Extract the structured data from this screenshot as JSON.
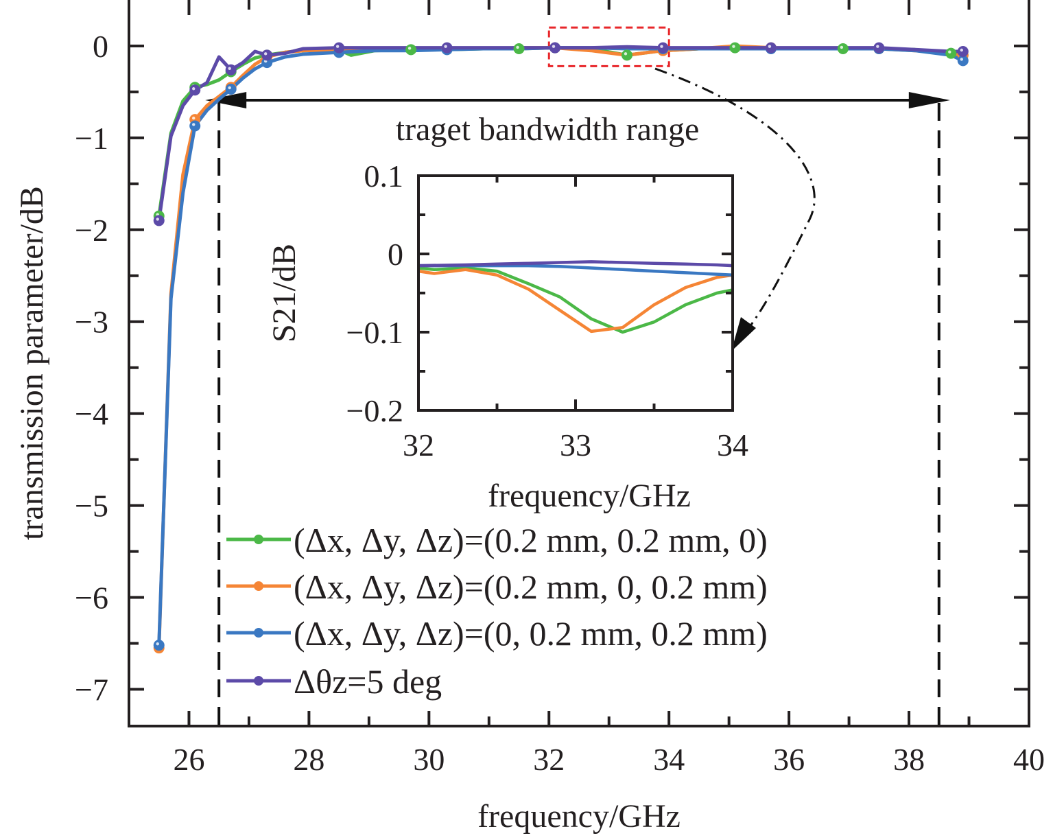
{
  "chart_data": {
    "type": "line",
    "title": "",
    "xlabel": "frequency/GHz",
    "ylabel": "transmission parameter/dB",
    "xlim": [
      25,
      40
    ],
    "ylim": [
      -7.4,
      0.5
    ],
    "xticks": [
      26,
      28,
      30,
      32,
      34,
      36,
      38,
      40
    ],
    "yticks": [
      0,
      -1,
      -2,
      -3,
      -4,
      -5,
      -6,
      -7
    ],
    "xtick_labels": [
      "26",
      "28",
      "30",
      "32",
      "34",
      "36",
      "38",
      "40"
    ],
    "ytick_labels": [
      "0",
      "−1",
      "−2",
      "−3",
      "−4",
      "−5",
      "−6",
      "−7"
    ],
    "grid": false,
    "legend_position": "bottom-center",
    "series": [
      {
        "name": "(Δx, Δy, Δz)=(0.2 mm, 0.2 mm, 0)",
        "color": "#4bb847",
        "x": [
          25.5,
          25.7,
          25.9,
          26.1,
          26.3,
          26.5,
          26.7,
          26.9,
          27.1,
          27.3,
          27.6,
          27.9,
          28.5,
          28.7,
          29.1,
          29.7,
          30.3,
          30.9,
          31.5,
          32.1,
          32.7,
          33.3,
          33.9,
          34.5,
          35.1,
          35.7,
          36.3,
          36.9,
          37.5,
          38.1,
          38.7,
          38.9
        ],
        "y": [
          -1.85,
          -0.95,
          -0.6,
          -0.45,
          -0.42,
          -0.37,
          -0.28,
          -0.2,
          -0.13,
          -0.1,
          -0.07,
          -0.05,
          -0.04,
          -0.1,
          -0.05,
          -0.04,
          -0.04,
          -0.03,
          -0.03,
          -0.02,
          -0.03,
          -0.1,
          -0.05,
          -0.03,
          -0.02,
          -0.03,
          -0.03,
          -0.03,
          -0.03,
          -0.04,
          -0.08,
          -0.1
        ]
      },
      {
        "name": "(Δx, Δy, Δz)=(0.2 mm, 0, 0.2 mm)",
        "color": "#f58535",
        "x": [
          25.5,
          25.7,
          25.9,
          26.1,
          26.3,
          26.5,
          26.7,
          26.9,
          27.1,
          27.3,
          27.6,
          27.9,
          28.5,
          29.1,
          29.7,
          30.3,
          30.9,
          31.5,
          32.1,
          32.7,
          33.3,
          33.9,
          34.5,
          35.1,
          35.7,
          36.3,
          36.9,
          37.5,
          38.1,
          38.7,
          38.9
        ],
        "y": [
          -6.55,
          -2.7,
          -1.4,
          -0.8,
          -0.65,
          -0.55,
          -0.45,
          -0.32,
          -0.2,
          -0.12,
          -0.07,
          -0.05,
          -0.04,
          -0.04,
          -0.03,
          -0.03,
          -0.03,
          -0.02,
          -0.02,
          -0.05,
          -0.1,
          -0.05,
          -0.03,
          0.0,
          -0.02,
          -0.03,
          -0.03,
          -0.03,
          -0.05,
          -0.08,
          -0.1
        ]
      },
      {
        "name": "(Δx, Δy, Δz)=(0, 0.2 mm, 0.2 mm)",
        "color": "#3a78c2",
        "x": [
          25.5,
          25.7,
          25.9,
          26.1,
          26.3,
          26.5,
          26.7,
          26.9,
          27.1,
          27.3,
          27.6,
          27.9,
          28.5,
          29.1,
          29.7,
          30.3,
          30.9,
          31.5,
          32.1,
          32.7,
          33.3,
          33.9,
          34.5,
          35.1,
          35.7,
          36.3,
          36.9,
          37.5,
          38.1,
          38.7,
          38.9
        ],
        "y": [
          -6.52,
          -2.75,
          -1.6,
          -0.87,
          -0.7,
          -0.58,
          -0.47,
          -0.35,
          -0.25,
          -0.18,
          -0.12,
          -0.09,
          -0.07,
          -0.05,
          -0.05,
          -0.04,
          -0.03,
          -0.03,
          -0.02,
          -0.02,
          -0.03,
          -0.03,
          -0.03,
          -0.03,
          -0.03,
          -0.03,
          -0.03,
          -0.03,
          -0.05,
          -0.1,
          -0.16
        ]
      },
      {
        "name": "Δθz=5 deg",
        "color": "#5c4aa8",
        "x": [
          25.5,
          25.7,
          25.9,
          26.1,
          26.3,
          26.5,
          26.7,
          26.9,
          27.1,
          27.3,
          27.6,
          27.9,
          28.5,
          29.1,
          29.7,
          30.3,
          30.9,
          31.5,
          32.1,
          32.7,
          33.3,
          33.9,
          34.5,
          35.1,
          35.7,
          36.3,
          36.9,
          37.5,
          38.1,
          38.7,
          38.9
        ],
        "y": [
          -1.9,
          -0.98,
          -0.65,
          -0.48,
          -0.4,
          -0.12,
          -0.26,
          -0.18,
          -0.06,
          -0.1,
          -0.08,
          -0.03,
          -0.02,
          -0.02,
          -0.02,
          -0.02,
          -0.02,
          -0.02,
          -0.02,
          -0.02,
          -0.01,
          -0.02,
          -0.02,
          -0.02,
          -0.02,
          -0.02,
          -0.02,
          -0.02,
          -0.04,
          -0.06,
          -0.06
        ]
      }
    ],
    "annotations": {
      "bandwidth_label": "traget bandwidth range",
      "bandwidth_range": [
        26.5,
        38.5
      ],
      "zoom_box": {
        "x": [
          32.0,
          34.0
        ],
        "y": [
          -0.22,
          0.2
        ]
      }
    },
    "inset": {
      "type": "line",
      "xlabel": "frequency/GHz",
      "ylabel": "S21/dB",
      "xlim": [
        32,
        34
      ],
      "ylim": [
        -0.2,
        0.1
      ],
      "xticks": [
        32,
        33,
        34
      ],
      "yticks": [
        0.1,
        0,
        -0.1,
        -0.2
      ],
      "xtick_labels": [
        "32",
        "33",
        "34"
      ],
      "ytick_labels": [
        "0.1",
        "0",
        "−0.1",
        "−0.2"
      ],
      "series": [
        {
          "name": "green",
          "color": "#4bb847",
          "x": [
            32.0,
            32.1,
            32.3,
            32.5,
            32.7,
            32.9,
            33.1,
            33.3,
            33.5,
            33.7,
            33.9,
            34.0
          ],
          "y": [
            -0.018,
            -0.02,
            -0.018,
            -0.022,
            -0.038,
            -0.055,
            -0.083,
            -0.1,
            -0.087,
            -0.065,
            -0.05,
            -0.046
          ]
        },
        {
          "name": "orange",
          "color": "#f58535",
          "x": [
            32.0,
            32.1,
            32.3,
            32.5,
            32.7,
            32.9,
            33.1,
            33.3,
            33.5,
            33.7,
            33.9,
            34.0
          ],
          "y": [
            -0.022,
            -0.025,
            -0.02,
            -0.027,
            -0.045,
            -0.072,
            -0.099,
            -0.094,
            -0.065,
            -0.043,
            -0.03,
            -0.027
          ]
        },
        {
          "name": "blue",
          "color": "#3a78c2",
          "x": [
            32.0,
            32.3,
            32.5,
            32.7,
            32.9,
            33.1,
            33.3,
            33.5,
            33.7,
            33.9,
            34.0
          ],
          "y": [
            -0.015,
            -0.015,
            -0.015,
            -0.015,
            -0.016,
            -0.018,
            -0.02,
            -0.022,
            -0.024,
            -0.026,
            -0.027
          ]
        },
        {
          "name": "purple",
          "color": "#5c4aa8",
          "x": [
            32.0,
            32.3,
            32.5,
            32.7,
            32.9,
            33.1,
            33.3,
            33.5,
            33.7,
            33.9,
            34.0
          ],
          "y": [
            -0.015,
            -0.014,
            -0.013,
            -0.012,
            -0.011,
            -0.01,
            -0.011,
            -0.012,
            -0.013,
            -0.014,
            -0.015
          ]
        }
      ]
    }
  }
}
